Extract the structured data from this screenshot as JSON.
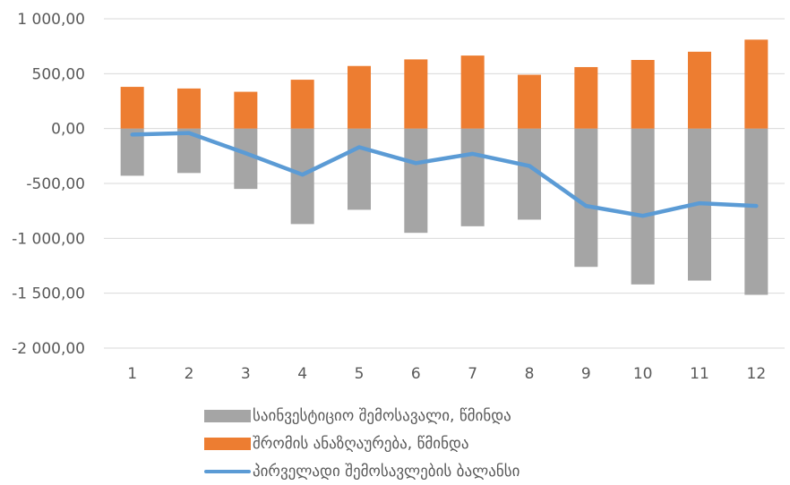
{
  "chart_data": {
    "type": "bar",
    "stacked": true,
    "categories": [
      "1",
      "2",
      "3",
      "4",
      "5",
      "6",
      "7",
      "8",
      "9",
      "10",
      "11",
      "12"
    ],
    "ylim": [
      -2000,
      1000
    ],
    "y_ticks": [
      1000,
      500,
      0,
      -500,
      -1000,
      -1500,
      -2000
    ],
    "y_tick_labels": [
      "1 000,00",
      "500,00",
      "0,00",
      "-500,00",
      "-1 000,00",
      "-1 500,00",
      "-2 000,00"
    ],
    "grid": true,
    "legend_position": "bottom",
    "series": [
      {
        "name": "საინვესტიციო შემოსავალი, წმინდა",
        "type": "bar",
        "color": "#a5a5a5",
        "values": [
          -430,
          -405,
          -550,
          -870,
          -740,
          -950,
          -890,
          -830,
          -1260,
          -1420,
          -1385,
          -1515
        ]
      },
      {
        "name": "შრომის ანაზღაურება, წმინდა",
        "type": "bar",
        "color": "#ed7d31",
        "values": [
          380,
          365,
          335,
          445,
          570,
          630,
          665,
          490,
          560,
          625,
          700,
          810
        ]
      },
      {
        "name": "პირველადი შემოსავლების ბალანსი",
        "type": "line",
        "color": "#5b9bd5",
        "values": [
          -55,
          -40,
          -225,
          -420,
          -170,
          -315,
          -230,
          -340,
          -705,
          -795,
          -680,
          -705
        ]
      }
    ]
  }
}
